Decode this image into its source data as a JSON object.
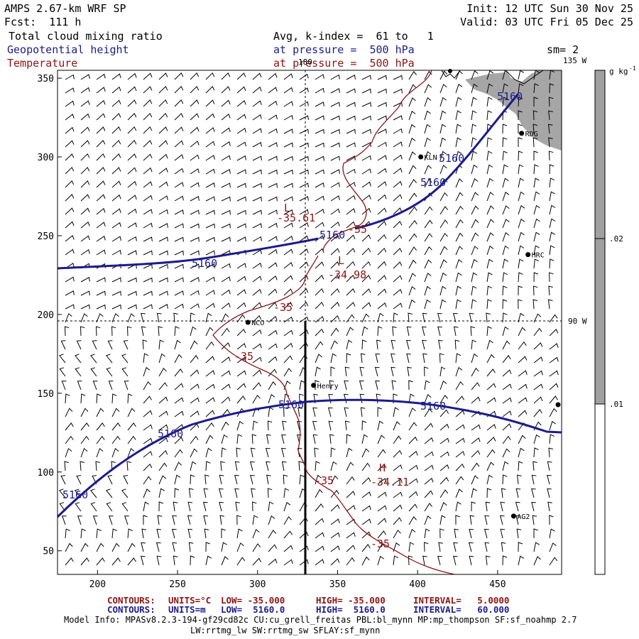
{
  "header": {
    "model": "AMPS 2.67-km WRF SP",
    "forecast": "Fcst:  111 h",
    "init": "Init: 12 UTC Sun 30 Nov 25",
    "valid": "Valid: 03 UTC Fri 05 Dec 25",
    "field1": "Total cloud mixing ratio",
    "field1_info": "Avg, k-index =  61 to   1",
    "field2": "Geopotential height",
    "field2_info": "at pressure =  500 hPa",
    "field2_extra": "sm= 2",
    "field3": "Temperature",
    "field3_info": "at pressure =  500 hPa"
  },
  "map": {
    "lon_labels": [
      "180",
      "135 W",
      "90 W"
    ],
    "stations": [
      {
        "name": "RDG",
        "x": 465,
        "y": 315
      },
      {
        "name": "KLN",
        "x": 402,
        "y": 300
      },
      {
        "name": "HRC",
        "x": 469,
        "y": 238
      },
      {
        "name": "NCO",
        "x": 294,
        "y": 195
      },
      {
        "name": "Henry",
        "x": 335,
        "y": 155
      },
      {
        "name": "AG2",
        "x": 460,
        "y": 72
      }
    ],
    "height_contour_labels": [
      "5160",
      "5160",
      "5160",
      "5160",
      "5160",
      "5160",
      "5160",
      "5160"
    ],
    "temp_contour_labels": [
      "-35",
      "-35",
      "-35",
      "-35",
      "-35"
    ],
    "extrema": [
      {
        "type": "L",
        "value": "-35.61"
      },
      {
        "type": "L",
        "value": "-34.98"
      },
      {
        "type": "H",
        "value": "-34.11"
      }
    ],
    "x_axis_ticks": [
      "200",
      "250",
      "300",
      "350",
      "400",
      "450"
    ],
    "y_axis_ticks": [
      "50",
      "100",
      "150",
      "200",
      "250",
      "300",
      "350"
    ]
  },
  "colorbar": {
    "unit_label": "g kg",
    "unit_exp": "-1",
    "ticks": [
      ".02",
      ".01"
    ],
    "colors": [
      "#a0a0a0",
      "#ffffff"
    ]
  },
  "footer": {
    "temp_contours": {
      "label": "CONTOURS:",
      "units": "UNITS=°C",
      "low": "LOW= -35.000",
      "high": "HIGH= -35.000",
      "interval": "INTERVAL=   5.0000"
    },
    "height_contours": {
      "label": "CONTOURS:",
      "units": "UNITS=m",
      "low": "LOW=  5160.0",
      "high": "HIGH=  5160.0",
      "interval": "INTERVAL=   60.000"
    },
    "model_info_1": "Model Info: MPASv8.2.3-194-gf29cd82c CU:cu_grell_freitas PBL:bl_mynn MP:mp_thompson SF:sf_noahmp 2.7",
    "model_info_2": "LW:rrtmg_lw SW:rrtmg_sw SFLAY:sf_mynn"
  },
  "colors": {
    "height": "#1c1c8c",
    "temperature": "#8c1414",
    "land": "#a6a6a6"
  }
}
